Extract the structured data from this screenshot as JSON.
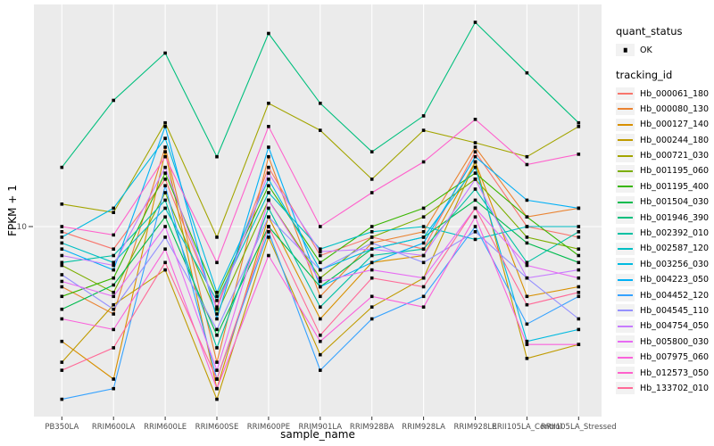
{
  "chart_data": {
    "type": "line",
    "title": "",
    "xlabel": "sample_name",
    "ylabel": "FPKM + 1",
    "y_scale": "log10",
    "y_ticks": [
      10
    ],
    "y_tick_labels": [
      "10"
    ],
    "grid": "major",
    "legend_position": "right",
    "point_shape": "filled-square",
    "point_color": "#000000",
    "panel_bg": "#EBEBEB",
    "grid_color": "#FFFFFF",
    "tick_label_color": "#4D4D4D",
    "categories": [
      "PB350LA",
      "RRIM600LA",
      "RRIM600LE",
      "RRIM600SE",
      "RRIM600PE",
      "RRIM901LA",
      "RRIM928BA",
      "RRIM928LA",
      "RRIM928LE",
      "RRII105LA_Control",
      "RRII105LA_Stressed"
    ],
    "series": [
      {
        "name": "Hb_000061_180",
        "color": "#F8766D",
        "values": [
          9.5,
          8.0,
          16,
          4.5,
          18,
          7.5,
          9.0,
          8.0,
          21,
          10,
          9.0
        ]
      },
      {
        "name": "Hb_000080_130",
        "color": "#EA8331",
        "values": [
          5.5,
          4.2,
          22,
          2.6,
          20,
          5.0,
          8.5,
          9.5,
          22,
          11,
          12
        ]
      },
      {
        "name": "Hb_000127_140",
        "color": "#D89000",
        "values": [
          3.2,
          2.2,
          21,
          2.0,
          11,
          4.0,
          7.0,
          7.5,
          19,
          5.0,
          5.5
        ]
      },
      {
        "name": "Hb_000244_180",
        "color": "#C09B00",
        "values": [
          2.6,
          4.6,
          6.5,
          1.8,
          9.0,
          2.8,
          4.5,
          6.0,
          19,
          2.7,
          3.1
        ]
      },
      {
        "name": "Hb_000721_030",
        "color": "#A3A500",
        "values": [
          12.5,
          11.5,
          28,
          9.0,
          34,
          26,
          16,
          26,
          23,
          20,
          27
        ]
      },
      {
        "name": "Hb_001195_060",
        "color": "#7CAE00",
        "values": [
          6.8,
          5.2,
          14,
          4.2,
          13,
          6.0,
          9.0,
          11,
          16,
          9.0,
          8.0
        ]
      },
      {
        "name": "Hb_001195_400",
        "color": "#39B600",
        "values": [
          5.0,
          6.0,
          17,
          5.0,
          15,
          7.0,
          10,
          12,
          17,
          11,
          7.5
        ]
      },
      {
        "name": "Hb_001504_030",
        "color": "#00BB4E",
        "values": [
          4.4,
          5.6,
          11,
          3.4,
          10,
          5.5,
          8.0,
          9.0,
          13,
          8.5,
          7.0
        ]
      },
      {
        "name": "Hb_001946_390",
        "color": "#00BF7D",
        "values": [
          18,
          35,
          56,
          20,
          68,
          34,
          21,
          30,
          76,
          46,
          28
        ]
      },
      {
        "name": "Hb_002392_010",
        "color": "#00C1A3",
        "values": [
          7.0,
          7.5,
          13,
          3.0,
          12,
          4.5,
          7.5,
          8.0,
          14.5,
          7.0,
          9.5
        ]
      },
      {
        "name": "Hb_002587_120",
        "color": "#00BFC4",
        "values": [
          8.5,
          7.0,
          12,
          4.8,
          14,
          8.0,
          9.5,
          10,
          8.8,
          10,
          10
        ]
      },
      {
        "name": "Hb_003256_030",
        "color": "#00BAE0",
        "values": [
          9.0,
          12,
          24,
          5.2,
          16,
          6.5,
          8.0,
          9.0,
          18,
          3.2,
          3.6
        ]
      },
      {
        "name": "Hb_004223_050",
        "color": "#00B0F6",
        "values": [
          8.0,
          6.5,
          27,
          4.0,
          22,
          5.5,
          7.0,
          8.5,
          20,
          13,
          12
        ]
      },
      {
        "name": "Hb_004452_120",
        "color": "#35A2FF",
        "values": [
          1.8,
          2.0,
          15,
          2.2,
          9.5,
          2.4,
          4.0,
          5.0,
          10,
          3.8,
          5.0
        ]
      },
      {
        "name": "Hb_004545_110",
        "color": "#9590FF",
        "values": [
          6.2,
          4.4,
          9.0,
          3.6,
          11,
          6.5,
          8.5,
          7.0,
          9.5,
          6.0,
          4.0
        ]
      },
      {
        "name": "Hb_004754_050",
        "color": "#C77CFF",
        "values": [
          7.5,
          6.8,
          18,
          4.4,
          17,
          7.8,
          8.0,
          7.5,
          16,
          6.0,
          6.5
        ]
      },
      {
        "name": "Hb_005800_030",
        "color": "#E76BF3",
        "values": [
          5.8,
          5.0,
          10,
          2.4,
          13,
          5.8,
          6.5,
          6.0,
          12,
          6.8,
          6.0
        ]
      },
      {
        "name": "Hb_007975_060",
        "color": "#FA62DB",
        "values": [
          4.0,
          3.6,
          8.0,
          2.0,
          7.5,
          3.2,
          5.0,
          4.5,
          11,
          3.1,
          3.1
        ]
      },
      {
        "name": "Hb_012573_050",
        "color": "#FF61CC",
        "values": [
          10,
          9.2,
          20,
          7.0,
          27,
          10,
          14,
          19,
          29,
          18.5,
          20.5
        ]
      },
      {
        "name": "Hb_133702_010",
        "color": "#FF6A98",
        "values": [
          2.4,
          3.0,
          7.0,
          2.2,
          10,
          3.4,
          6.0,
          5.5,
          12,
          4.6,
          5.2
        ]
      }
    ]
  },
  "legend": {
    "quant_status_title": "quant_status",
    "quant_status_items": [
      {
        "label": "OK"
      }
    ],
    "tracking_title": "tracking_id"
  }
}
